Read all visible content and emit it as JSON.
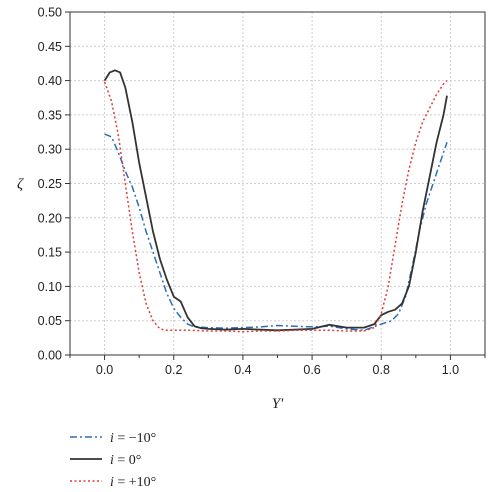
{
  "chart_data": {
    "type": "line",
    "xlabel": "Y'",
    "ylabel": "ζ",
    "xlim": [
      -0.1,
      1.1
    ],
    "ylim": [
      0.0,
      0.5
    ],
    "x_ticks": [
      "0.0",
      "0.2",
      "0.4",
      "0.6",
      "0.8",
      "1.0"
    ],
    "y_ticks": [
      "0.00",
      "0.05",
      "0.10",
      "0.15",
      "0.20",
      "0.25",
      "0.30",
      "0.35",
      "0.40",
      "0.45",
      "0.50"
    ],
    "grid": true,
    "legend_position": "bottom-left",
    "series": [
      {
        "name": "i = −10°",
        "legend_var": "i",
        "legend_rest": " = −10°",
        "color": "#2a6fb8",
        "style": "dash-dot",
        "x": [
          0.0,
          0.02,
          0.04,
          0.06,
          0.08,
          0.1,
          0.12,
          0.14,
          0.16,
          0.18,
          0.2,
          0.22,
          0.24,
          0.26,
          0.3,
          0.35,
          0.4,
          0.45,
          0.5,
          0.55,
          0.6,
          0.65,
          0.7,
          0.75,
          0.8,
          0.83,
          0.85,
          0.87,
          0.89,
          0.91,
          0.93,
          0.95,
          0.97,
          0.99
        ],
        "y": [
          0.322,
          0.318,
          0.295,
          0.268,
          0.245,
          0.215,
          0.18,
          0.15,
          0.12,
          0.09,
          0.068,
          0.055,
          0.045,
          0.041,
          0.04,
          0.039,
          0.04,
          0.041,
          0.043,
          0.042,
          0.041,
          0.042,
          0.038,
          0.036,
          0.045,
          0.05,
          0.06,
          0.085,
          0.13,
          0.18,
          0.22,
          0.25,
          0.28,
          0.31
        ]
      },
      {
        "name": "i = 0°",
        "legend_var": "i",
        "legend_rest": " = 0°",
        "color": "#333333",
        "style": "solid",
        "x": [
          0.0,
          0.015,
          0.03,
          0.045,
          0.06,
          0.08,
          0.1,
          0.12,
          0.14,
          0.16,
          0.18,
          0.2,
          0.22,
          0.24,
          0.26,
          0.28,
          0.3,
          0.35,
          0.4,
          0.45,
          0.5,
          0.55,
          0.6,
          0.65,
          0.7,
          0.75,
          0.78,
          0.8,
          0.82,
          0.84,
          0.86,
          0.88,
          0.9,
          0.92,
          0.94,
          0.96,
          0.98,
          0.99
        ],
        "y": [
          0.4,
          0.412,
          0.415,
          0.412,
          0.39,
          0.34,
          0.28,
          0.23,
          0.18,
          0.14,
          0.11,
          0.085,
          0.078,
          0.055,
          0.042,
          0.039,
          0.038,
          0.037,
          0.038,
          0.037,
          0.036,
          0.037,
          0.038,
          0.044,
          0.04,
          0.04,
          0.045,
          0.058,
          0.063,
          0.066,
          0.075,
          0.1,
          0.15,
          0.21,
          0.26,
          0.31,
          0.35,
          0.378
        ]
      },
      {
        "name": "i = +10°",
        "legend_var": "i",
        "legend_rest": " = +10°",
        "color": "#e03a3a",
        "style": "dotted",
        "x": [
          0.0,
          0.02,
          0.04,
          0.06,
          0.08,
          0.1,
          0.12,
          0.14,
          0.16,
          0.18,
          0.2,
          0.25,
          0.3,
          0.35,
          0.4,
          0.45,
          0.5,
          0.55,
          0.6,
          0.65,
          0.7,
          0.75,
          0.78,
          0.8,
          0.82,
          0.84,
          0.86,
          0.88,
          0.9,
          0.92,
          0.94,
          0.96,
          0.98,
          0.99
        ],
        "y": [
          0.398,
          0.37,
          0.32,
          0.25,
          0.18,
          0.12,
          0.075,
          0.05,
          0.038,
          0.036,
          0.036,
          0.036,
          0.035,
          0.035,
          0.034,
          0.035,
          0.035,
          0.036,
          0.036,
          0.036,
          0.035,
          0.035,
          0.04,
          0.06,
          0.1,
          0.16,
          0.22,
          0.27,
          0.31,
          0.34,
          0.36,
          0.38,
          0.395,
          0.4
        ]
      }
    ]
  }
}
